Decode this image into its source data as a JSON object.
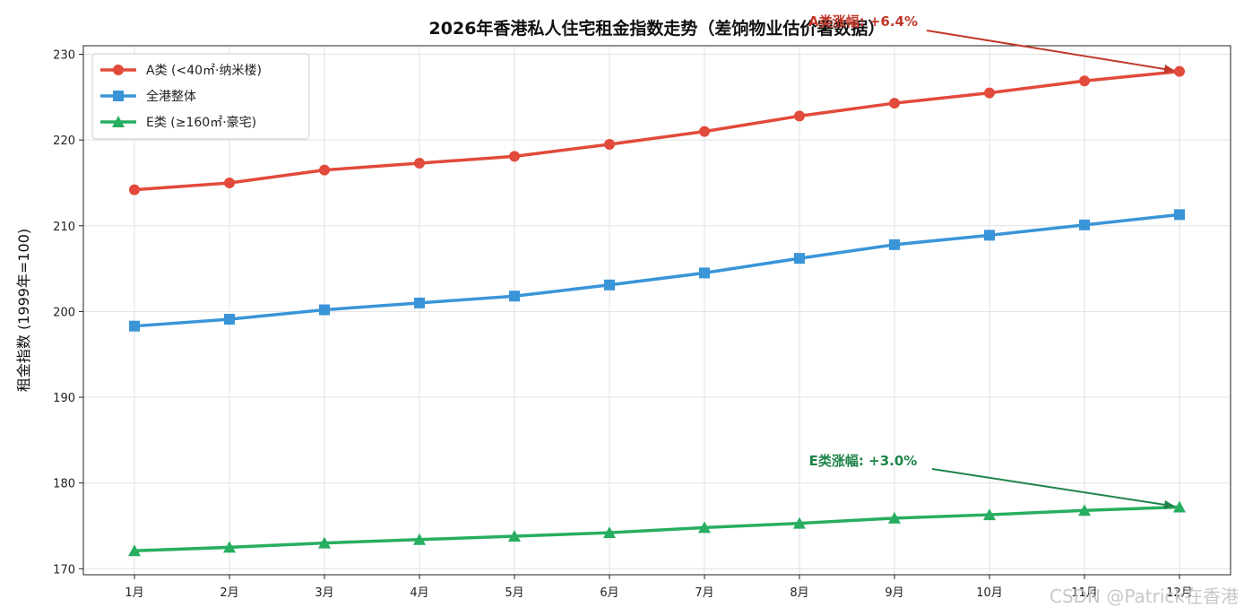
{
  "watermark": "CSDN @Patrick在香港",
  "chart_data": {
    "type": "line",
    "title": "2026年香港私人住宅租金指数走势（差饷物业估价署数据）",
    "xlabel": "",
    "ylabel": "租金指数 (1999年=100)",
    "categories": [
      "1月",
      "2月",
      "3月",
      "4月",
      "5月",
      "6月",
      "7月",
      "8月",
      "9月",
      "10月",
      "11月",
      "12月"
    ],
    "ylim": [
      169.3,
      231
    ],
    "yticks": [
      170,
      180,
      190,
      200,
      210,
      220,
      230
    ],
    "grid": true,
    "legend_position": "top-left",
    "series": [
      {
        "name": "A类 (<40㎡·纳米楼)",
        "color": "#e24a3b",
        "marker": "circle",
        "values": [
          214.2,
          215.0,
          216.5,
          217.3,
          218.1,
          219.5,
          221.0,
          222.8,
          224.3,
          225.5,
          226.9,
          228.0
        ]
      },
      {
        "name": "全港整体",
        "color": "#3a95d8",
        "marker": "square",
        "values": [
          198.3,
          199.1,
          200.2,
          201.0,
          201.8,
          203.1,
          204.5,
          206.2,
          207.8,
          208.9,
          210.1,
          211.3
        ]
      },
      {
        "name": "E类 (≥160㎡·豪宅)",
        "color": "#27ae60",
        "marker": "triangle",
        "values": [
          172.1,
          172.5,
          173.0,
          173.4,
          173.8,
          174.2,
          174.8,
          175.3,
          175.9,
          176.3,
          176.8,
          177.2
        ]
      }
    ],
    "annotations": [
      {
        "text": "A类涨幅: +6.4%",
        "color": "#c0392b",
        "target_index": 11,
        "series_index": 0
      },
      {
        "text": "E类涨幅: +3.0%",
        "color": "#1e8449",
        "target_index": 11,
        "series_index": 2
      }
    ]
  }
}
